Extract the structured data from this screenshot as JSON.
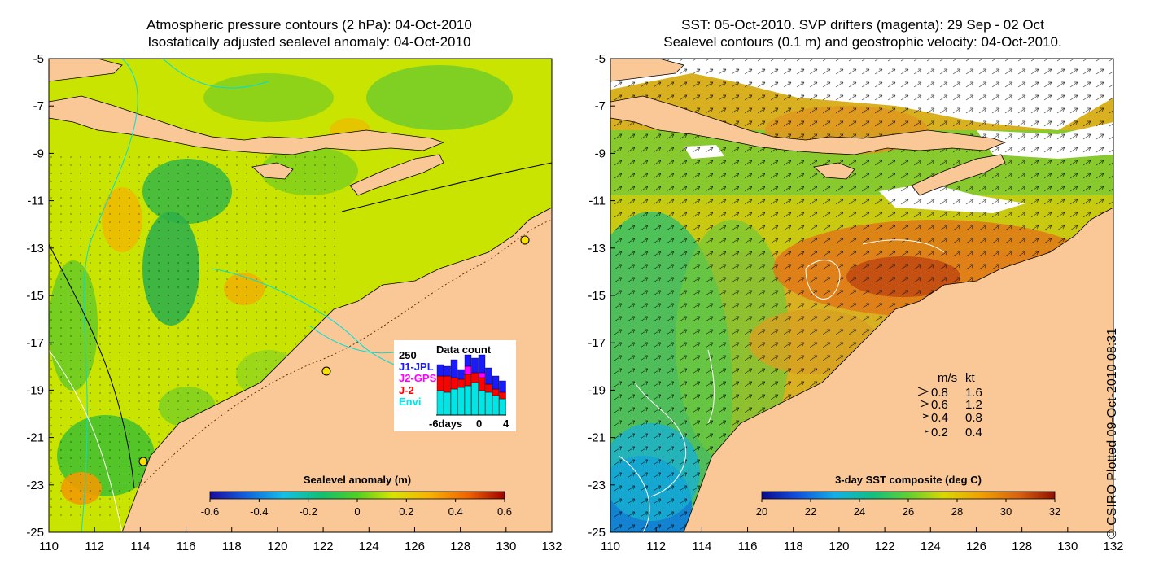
{
  "left_panel": {
    "title_line1": "Atmospheric pressure contours (2 hPa): 04-Oct-2010",
    "title_line2": "Isostatically adjusted sealevel anomaly: 04-Oct-2010",
    "colorbar_label": "Sealevel anomaly (m)",
    "colorbar_ticks": [
      "-0.6",
      "-0.4",
      "-0.2",
      "0",
      "0.2",
      "0.4",
      "0.6"
    ],
    "inset": {
      "title": "Data count",
      "max_label": "250",
      "legend": [
        {
          "label": "J1-JPL",
          "color": "#1a1aff"
        },
        {
          "label": "J2-GPS",
          "color": "#ff00ff"
        },
        {
          "label": "J-2",
          "color": "#ff0000"
        },
        {
          "label": "Envi",
          "color": "#00e5e5"
        }
      ],
      "x_ticks": [
        "-6days",
        "0",
        "4"
      ]
    }
  },
  "right_panel": {
    "title_line1": "SST: 05-Oct-2010. SVP drifters (magenta): 29 Sep - 02 Oct",
    "title_line2": "Sealevel contours (0.1 m) and geostrophic velocity: 04-Oct-2010.",
    "colorbar_label": "3-day SST composite (deg C)",
    "colorbar_ticks": [
      "20",
      "22",
      "24",
      "26",
      "28",
      "30",
      "32"
    ],
    "velocity_legend": {
      "header_ms": "m/s",
      "header_kt": "kt",
      "rows": [
        {
          "ms": "0.8",
          "kt": "1.6"
        },
        {
          "ms": "0.6",
          "kt": "1.2"
        },
        {
          "ms": "0.4",
          "kt": "0.8"
        },
        {
          "ms": "0.2",
          "kt": "0.4"
        }
      ]
    }
  },
  "axes": {
    "y_ticks": [
      "-5",
      "-7",
      "-9",
      "-11",
      "-13",
      "-15",
      "-17",
      "-19",
      "-21",
      "-23",
      "-25"
    ],
    "x_ticks": [
      "110",
      "112",
      "114",
      "116",
      "118",
      "120",
      "122",
      "124",
      "126",
      "128",
      "130",
      "132"
    ]
  },
  "copyright": "© CSIRO Plotted 09-Oct-2010 08:31",
  "colors": {
    "land": "#f9c896",
    "sla_base": "#c8e400",
    "sst_base": "#d89818",
    "contour": "#00dddd"
  }
}
